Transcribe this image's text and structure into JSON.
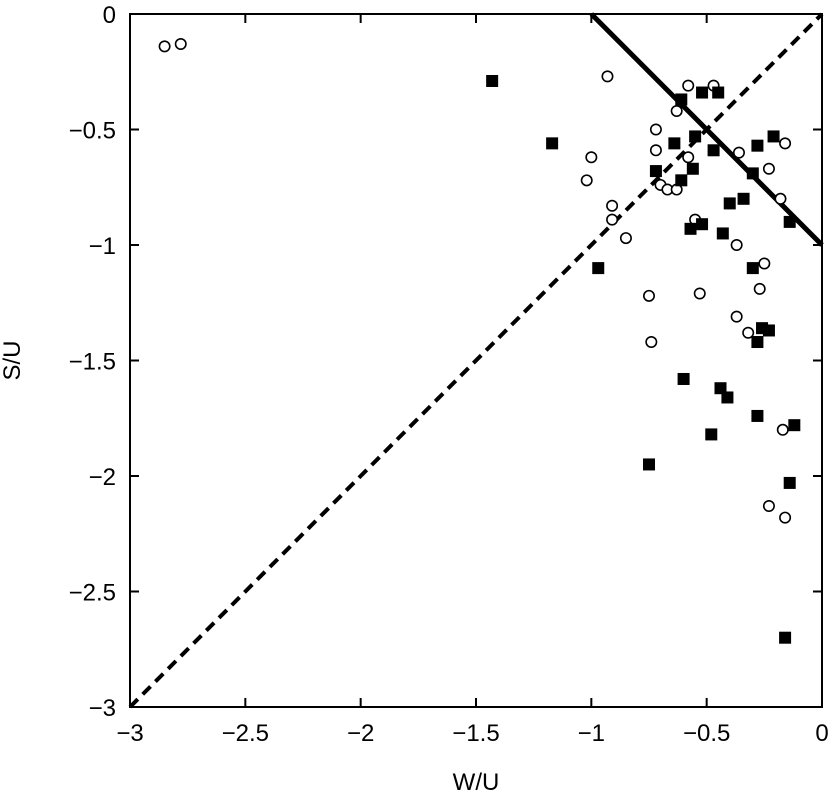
{
  "chart_data": {
    "type": "scatter",
    "xlabel": "W/U",
    "ylabel": "S/U",
    "xlim": [
      -3,
      0
    ],
    "ylim": [
      -3,
      0
    ],
    "grid": false,
    "x_ticks": [
      -3,
      -2.5,
      -2,
      -1.5,
      -1,
      -0.5,
      0
    ],
    "y_ticks": [
      -3,
      -2.5,
      -2,
      -1.5,
      -1,
      -0.5,
      0
    ],
    "x_tick_labels": [
      "−3",
      "−2.5",
      "−2",
      "−1.5",
      "−1",
      "−0.5",
      "0"
    ],
    "y_tick_labels": [
      "−3",
      "−2.5",
      "−2",
      "−1.5",
      "−1",
      "−0.5",
      "0"
    ],
    "lines": [
      {
        "style": "dashed",
        "color": "#000000",
        "points": [
          [
            -3,
            -3
          ],
          [
            0,
            0
          ]
        ]
      },
      {
        "style": "solid",
        "color": "#000000",
        "points": [
          [
            -1,
            0
          ],
          [
            0,
            -1
          ]
        ]
      }
    ],
    "series": [
      {
        "marker": "open-circle",
        "points": [
          [
            -2.85,
            -0.14
          ],
          [
            -2.78,
            -0.13
          ],
          [
            -0.93,
            -0.27
          ],
          [
            -0.58,
            -0.31
          ],
          [
            -0.47,
            -0.31
          ],
          [
            -0.63,
            -0.42
          ],
          [
            -0.72,
            -0.5
          ],
          [
            -0.72,
            -0.59
          ],
          [
            -1.0,
            -0.62
          ],
          [
            -0.58,
            -0.62
          ],
          [
            -1.02,
            -0.72
          ],
          [
            -0.7,
            -0.74
          ],
          [
            -0.67,
            -0.76
          ],
          [
            -0.63,
            -0.76
          ],
          [
            -0.36,
            -0.6
          ],
          [
            -0.23,
            -0.67
          ],
          [
            -0.16,
            -0.56
          ],
          [
            -0.18,
            -0.8
          ],
          [
            -0.91,
            -0.83
          ],
          [
            -0.91,
            -0.89
          ],
          [
            -0.55,
            -0.89
          ],
          [
            -0.85,
            -0.97
          ],
          [
            -0.37,
            -1.0
          ],
          [
            -0.25,
            -1.08
          ],
          [
            -0.75,
            -1.22
          ],
          [
            -0.53,
            -1.21
          ],
          [
            -0.27,
            -1.19
          ],
          [
            -0.37,
            -1.31
          ],
          [
            -0.32,
            -1.38
          ],
          [
            -0.74,
            -1.42
          ],
          [
            -0.17,
            -1.8
          ],
          [
            -0.23,
            -2.13
          ],
          [
            -0.16,
            -2.18
          ]
        ]
      },
      {
        "marker": "filled-square",
        "points": [
          [
            -1.43,
            -0.29
          ],
          [
            -1.17,
            -0.56
          ],
          [
            -0.61,
            -0.37
          ],
          [
            -0.52,
            -0.34
          ],
          [
            -0.45,
            -0.34
          ],
          [
            -0.55,
            -0.53
          ],
          [
            -0.64,
            -0.56
          ],
          [
            -0.47,
            -0.59
          ],
          [
            -0.21,
            -0.53
          ],
          [
            -0.28,
            -0.57
          ],
          [
            -0.72,
            -0.68
          ],
          [
            -0.56,
            -0.67
          ],
          [
            -0.61,
            -0.72
          ],
          [
            -0.3,
            -0.69
          ],
          [
            -0.34,
            -0.8
          ],
          [
            -0.4,
            -0.82
          ],
          [
            -0.57,
            -0.93
          ],
          [
            -0.52,
            -0.91
          ],
          [
            -0.43,
            -0.95
          ],
          [
            -0.14,
            -0.9
          ],
          [
            -0.97,
            -1.1
          ],
          [
            -0.3,
            -1.1
          ],
          [
            -0.26,
            -1.36
          ],
          [
            -0.23,
            -1.37
          ],
          [
            -0.28,
            -1.42
          ],
          [
            -0.6,
            -1.58
          ],
          [
            -0.44,
            -1.62
          ],
          [
            -0.41,
            -1.66
          ],
          [
            -0.28,
            -1.74
          ],
          [
            -0.12,
            -1.78
          ],
          [
            -0.48,
            -1.82
          ],
          [
            -0.75,
            -1.95
          ],
          [
            -0.14,
            -2.03
          ],
          [
            -0.16,
            -2.7
          ]
        ]
      }
    ]
  }
}
